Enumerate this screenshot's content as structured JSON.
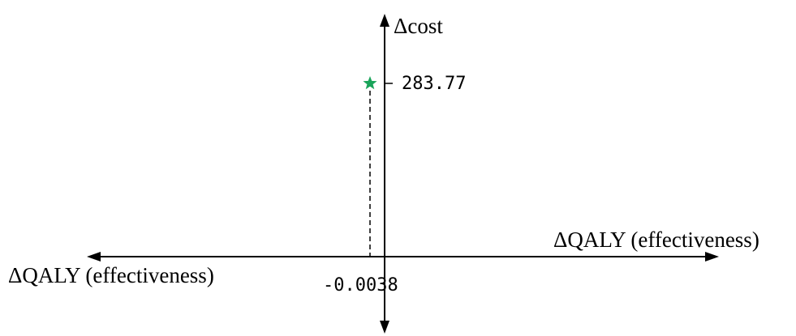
{
  "chart_data": {
    "type": "scatter",
    "title": "",
    "axes": {
      "x_label_right": "ΔQALY (effectiveness)",
      "x_label_left": "ΔQALY (effectiveness)",
      "y_label": "Δcost",
      "origin": [
        0,
        0
      ]
    },
    "points": [
      {
        "x": -0.0038,
        "y": 283.77,
        "marker": "star",
        "color": "#1aa45a"
      }
    ],
    "tick_labels": {
      "x": "-0.0038",
      "y": "283.77"
    },
    "guide_lines": "dashed-vertical-from-point-to-x-axis",
    "grid": false
  }
}
